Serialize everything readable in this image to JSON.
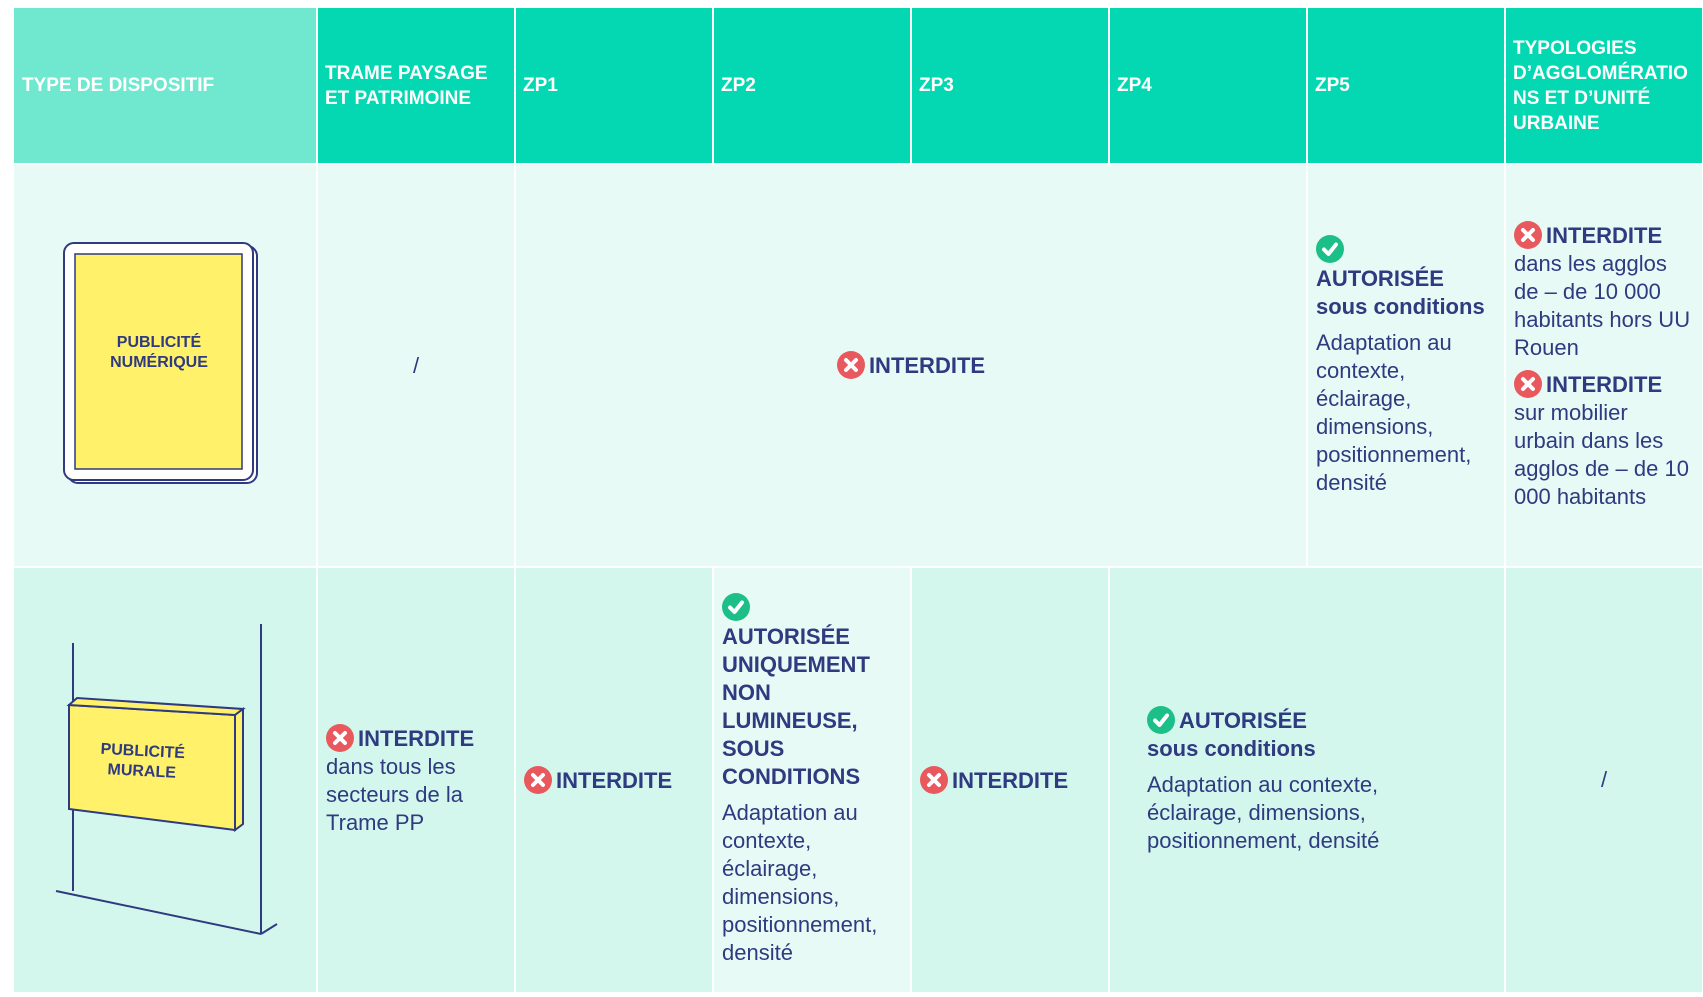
{
  "header": [
    "TYPE DE DISPOSITIF",
    "TRAME PAYSAGE ET PATRIMOINE",
    "ZP1",
    "ZP2",
    "ZP3",
    "ZP4",
    "ZP5",
    "TYPOLOGIES D’AGGLOMÉRATIONS ET D’UNITÉ URBAINE"
  ],
  "rows": [
    {
      "device": "PUBLICITÉ NUMÉRIQUE",
      "trame": "/",
      "zp1_zp4": "INTERDITE",
      "zp5": {
        "status": "AUTORISÉE",
        "condition": "sous conditions",
        "detail": "Adaptation au contexte, éclairage, dimensions, positionnement, densité"
      },
      "typologies": [
        {
          "status": "INTERDITE",
          "detail": "dans les agglos de – de 10 000 habitants hors UU Rouen"
        },
        {
          "status": "INTERDITE",
          "detail": "sur mobilier urbain dans les agglos de – de 10 000 habitants"
        }
      ]
    },
    {
      "device": "PUBLICITÉ MURALE",
      "trame": {
        "status": "INTERDITE",
        "detail": "dans tous les secteurs de la Trame PP"
      },
      "zp1": "INTERDITE",
      "zp2": {
        "status": "AUTORISÉE UNIQUEMENT NON LUMINEUSE, SOUS CONDITIONS",
        "detail": "Adaptation au contexte, éclairage, dimensions, positionnement, densité"
      },
      "zp3": "INTERDITE",
      "zp4_zp5": {
        "status": "AUTORISÉE",
        "condition": "sous conditions",
        "detail": "Adaptation au contexte, éclairage, dimensions, positionnement, densité"
      },
      "typologies": "/"
    }
  ]
}
